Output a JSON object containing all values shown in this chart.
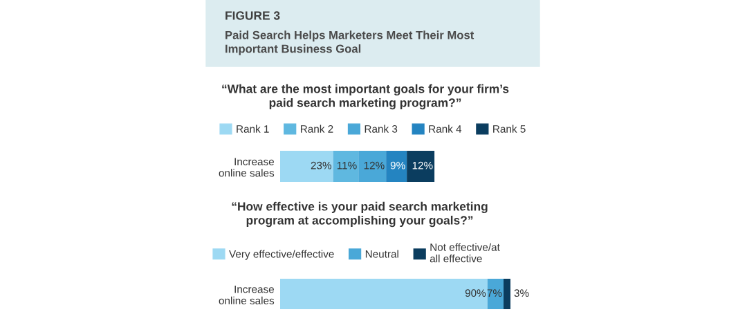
{
  "chart_data": [
    {
      "type": "other",
      "title": "FIGURE 3",
      "subtitle": "Paid Search Helps Marketers Meet Their Most Important Business Goal"
    },
    {
      "type": "bar",
      "orientation": "horizontal",
      "stacked": true,
      "legend": "top",
      "title": "“What are the most important goals for your firm’s paid search marketing program?”",
      "categories": [
        "Increase online sales"
      ],
      "series": [
        {
          "name": "Rank 1",
          "color": "#9dd9f3",
          "values": [
            23
          ],
          "value_labels": [
            "23%"
          ]
        },
        {
          "name": "Rank 2",
          "color": "#5fb8e0",
          "values": [
            11
          ],
          "value_labels": [
            "11%"
          ]
        },
        {
          "name": "Rank 3",
          "color": "#4aa8d8",
          "values": [
            12
          ],
          "value_labels": [
            "12%"
          ]
        },
        {
          "name": "Rank 4",
          "color": "#2484c1",
          "values": [
            9
          ],
          "value_labels": [
            "9%"
          ]
        },
        {
          "name": "Rank 5",
          "color": "#0b3d5f",
          "values": [
            12
          ],
          "value_labels": [
            "12%"
          ]
        }
      ]
    },
    {
      "type": "bar",
      "orientation": "horizontal",
      "stacked": true,
      "legend": "top",
      "title": "“How effective is your paid search marketing program at accomplishing your goals?”",
      "categories": [
        "Increase online sales"
      ],
      "series": [
        {
          "name": "Very effective/effective",
          "color": "#9dd9f3",
          "values": [
            90
          ],
          "value_labels": [
            "90%"
          ]
        },
        {
          "name": "Neutral",
          "color": "#4aa8d8",
          "values": [
            7
          ],
          "value_labels": [
            "7%"
          ]
        },
        {
          "name": "Not effective/at all effective",
          "color": "#0b3d5f",
          "values": [
            3
          ],
          "value_labels": [
            "3%"
          ]
        }
      ]
    }
  ]
}
